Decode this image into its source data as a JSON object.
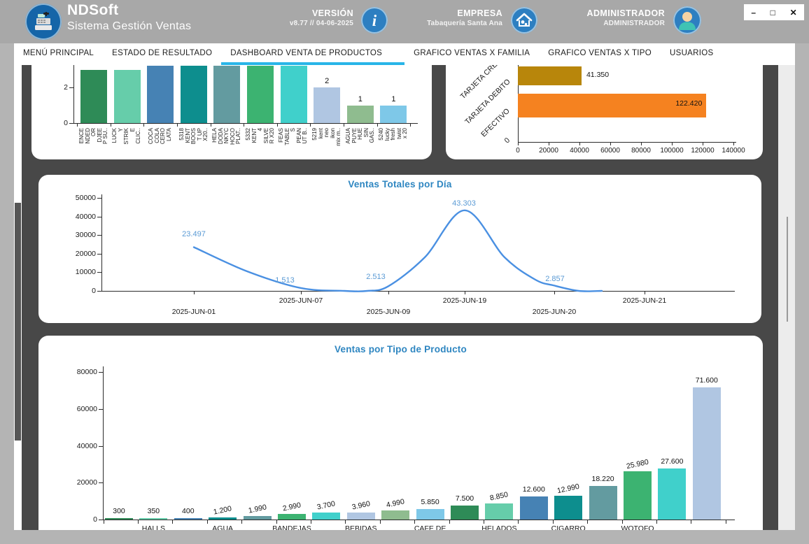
{
  "header": {
    "app_name": "NDSoft",
    "app_subtitle": "Sistema Gestión Ventas",
    "version_label": "VERSIÓN",
    "version_value": "v8.77 // 04-06-2025",
    "company_label": "EMPRESA",
    "company_value": "Tabaquería Santa Ana",
    "role_label": "ADMINISTRADOR",
    "user_value": "ADMINISTRADOR"
  },
  "window_controls": {
    "minimize": "–",
    "maximize": "□",
    "close": "✕"
  },
  "tabs": [
    {
      "label": "MENÚ PRINCIPAL",
      "active": false
    },
    {
      "label": "ESTADO DE RESULTADO",
      "active": false
    },
    {
      "label": "DASHBOARD VENTA DE PRODUCTOS",
      "active": true
    },
    {
      "label": "GRAFICO VENTAS X FAMILIA",
      "active": false
    },
    {
      "label": "GRAFICO VENTAS X TIPO",
      "active": false
    },
    {
      "label": "USUARIOS",
      "active": false
    }
  ],
  "palette": [
    "#2e8b57",
    "#66cdaa",
    "#4682b4",
    "#0d8e8e",
    "#639ba0",
    "#3cb371",
    "#40d0cb",
    "#b0c6e2",
    "#8fbc8f",
    "#7ec8e8"
  ],
  "chart_data": [
    {
      "id": "top_products_units",
      "type": "bar",
      "title": "",
      "note": "chart clipped at top by scroll position",
      "categories": [
        "ENCENDEDOR DJEEP SU..",
        "LUCKY STRIKE CLIC..",
        "COCA COLA CERO LATA",
        "5318 KENT BOOST UP X20..",
        "HELADODANKYCHOCOPLAT..",
        "5332 KENT 4 SILVER X20",
        "FEASTABLES PEANUT B..",
        "5219 kent neo ikon mix m..",
        "AGUA PUYEHUE SIN GAS..",
        "5240 lucky fresh twist x 20"
      ],
      "tick_lines": [
        "ENCE\nNDED\nOR\nDJEE\nP SU..",
        "LUCK\nY\nSTRIK\nE\nCLIC..",
        "COCA\nCOLA\nCERO\nLATA",
        "5318\nKENT\nBOOS\nT UP\nX20..",
        "HELA\nDODA\nNKYC\nHOCO\nPLAT..",
        "5332\nKENT\n4\nSILVE\nR X20",
        "FEAS\nTABLE\nS\nPEAN\nUT B..",
        "5219\nkent\nneo\nikon\nmix m..",
        "AGUA\nPUYE\nHUE\nSIN\nGAS..",
        "5240\nlucky\nfresh\ntwist\nx 20"
      ],
      "values": [
        3,
        3,
        4,
        4,
        4,
        4,
        4,
        2,
        1,
        1
      ],
      "value_labels": [
        "",
        "",
        "",
        "",
        "",
        "",
        "",
        "2",
        "1",
        "1"
      ],
      "yticks": [
        0,
        2
      ],
      "ylim": [
        0,
        2.8
      ]
    },
    {
      "id": "sales_by_payment",
      "type": "bar",
      "orientation": "horizontal",
      "title": "",
      "categories_bottom_to_top": [
        "0",
        "EFECTIVO",
        "TARJETA DEBITO",
        "TARJETA CREDITO"
      ],
      "values": [
        0,
        122420,
        41350,
        null
      ],
      "value_labels": [
        "",
        "122.420",
        "41.350",
        ""
      ],
      "xticks": [
        0,
        20000,
        40000,
        60000,
        80000,
        100000,
        120000,
        140000
      ],
      "xlim": [
        0,
        140000
      ],
      "bar_colors": [
        "",
        "#f58220",
        "#b8860b",
        ""
      ]
    },
    {
      "id": "daily_sales",
      "type": "line",
      "title": "Ventas Totales por Día",
      "x": [
        "2025-JUN-01",
        "2025-JUN-07",
        "2025-JUN-09",
        "2025-JUN-19",
        "2025-JUN-20",
        "2025-JUN-21"
      ],
      "values": [
        23497,
        1513,
        2513,
        43303,
        2857,
        0
      ],
      "point_labels": [
        "23.497",
        "1.513",
        "2.513",
        "43.303",
        "2.857",
        ""
      ],
      "yticks": [
        0,
        10000,
        20000,
        30000,
        40000,
        50000
      ],
      "ylim": [
        0,
        50000
      ],
      "line_color": "#4a90e2",
      "label_color": "#5b9bd5",
      "title_color": "#2e86c1",
      "grid": false,
      "legend": false
    },
    {
      "id": "sales_by_product_type",
      "type": "bar",
      "title": "Ventas por Tipo de Producto",
      "values": [
        300,
        350,
        400,
        1200,
        1990,
        2990,
        3700,
        3960,
        4990,
        5850,
        7500,
        8850,
        12600,
        12990,
        18220,
        25980,
        27600,
        71600
      ],
      "value_labels": [
        "300",
        "350",
        "400",
        "1.200",
        "1.990",
        "2.990",
        "3.700",
        "3.960",
        "4.990",
        "5.850",
        "7.500",
        "8.850",
        "12.600",
        "12.990",
        "18.220",
        "25.980",
        "27.600",
        "71.600"
      ],
      "xtick_labels": [
        "",
        "HALLS",
        "",
        "AGUA",
        "",
        "BANDEJAS",
        "",
        "BEBIDAS",
        "",
        "CAFE DE",
        "",
        "HELADOS",
        "",
        "CIGARRO",
        "",
        "WOTOFO",
        "",
        ""
      ],
      "yticks": [
        0,
        20000,
        40000,
        60000,
        80000
      ],
      "ylim": [
        0,
        80000
      ],
      "grid": false,
      "legend": false
    }
  ]
}
